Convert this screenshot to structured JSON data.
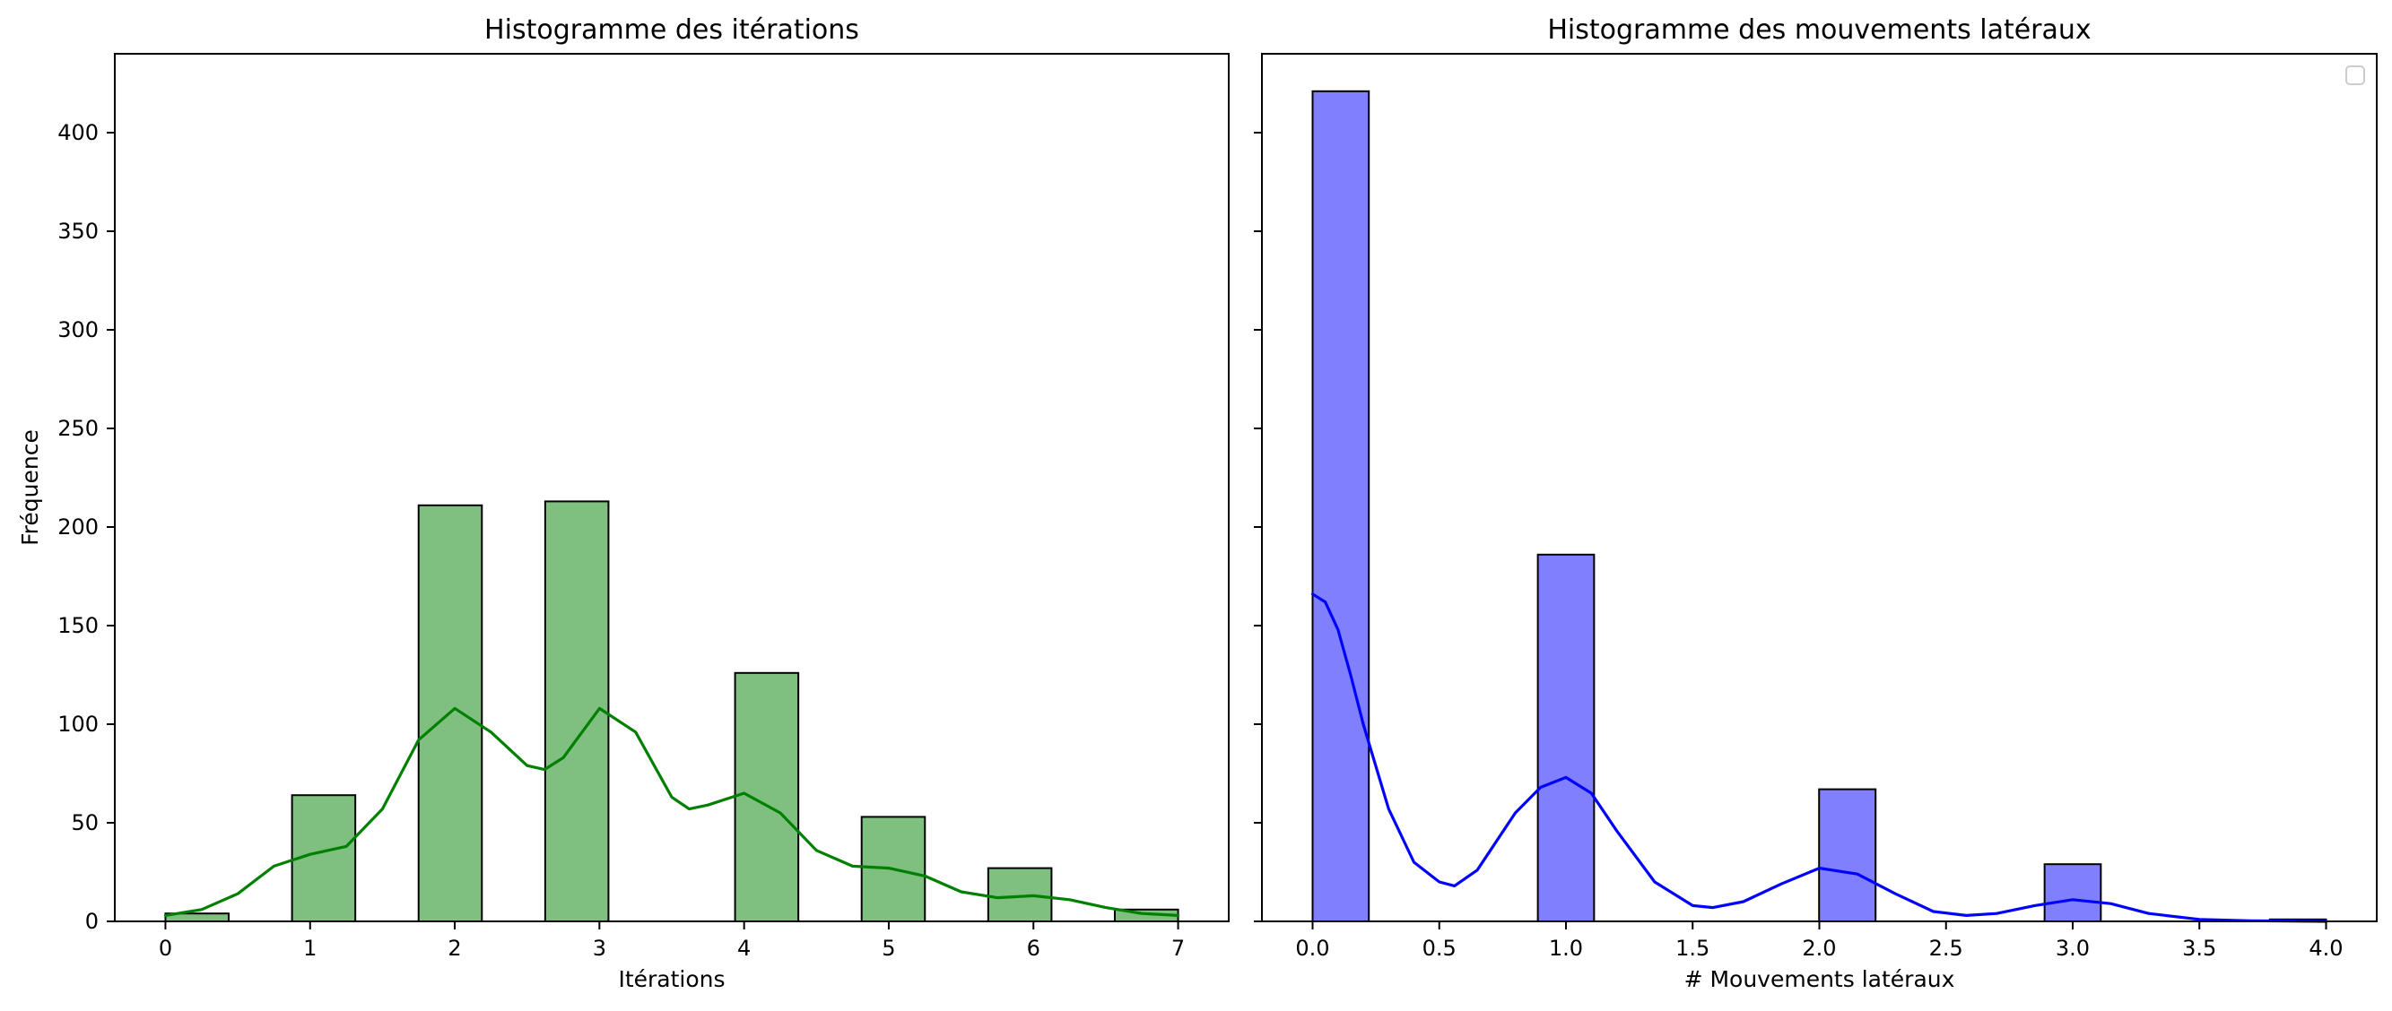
{
  "chart_data": [
    {
      "type": "bar",
      "title": "Histogramme des itérations",
      "xlabel": "Itérations",
      "ylabel": "Fréquence",
      "xlim": [
        -0.35,
        7.35
      ],
      "ylim": [
        0,
        440
      ],
      "xticks": [
        "0",
        "1",
        "2",
        "3",
        "4",
        "5",
        "6",
        "7"
      ],
      "yticks": [
        "0",
        "50",
        "100",
        "150",
        "200",
        "250",
        "300",
        "350",
        "400"
      ],
      "bins": [
        {
          "x0": 0.0,
          "x1": 0.4375,
          "count": 4
        },
        {
          "x0": 0.875,
          "x1": 1.3125,
          "count": 64
        },
        {
          "x0": 1.75,
          "x1": 2.1875,
          "count": 211
        },
        {
          "x0": 2.625,
          "x1": 3.0625,
          "count": 213
        },
        {
          "x0": 3.9375,
          "x1": 4.375,
          "count": 126
        },
        {
          "x0": 4.8125,
          "x1": 5.25,
          "count": 53
        },
        {
          "x0": 5.6875,
          "x1": 6.125,
          "count": 27
        },
        {
          "x0": 6.5625,
          "x1": 7.0,
          "count": 6
        }
      ],
      "kde": {
        "x": [
          0.0,
          0.25,
          0.5,
          0.75,
          1.0,
          1.25,
          1.5,
          1.75,
          2.0,
          2.25,
          2.5,
          2.62,
          2.75,
          3.0,
          3.25,
          3.5,
          3.62,
          3.75,
          4.0,
          4.25,
          4.5,
          4.75,
          5.0,
          5.25,
          5.5,
          5.75,
          6.0,
          6.25,
          6.5,
          6.75,
          7.0
        ],
        "y": [
          3,
          6,
          14,
          28,
          34,
          38,
          57,
          92,
          108,
          96,
          79,
          77,
          83,
          108,
          96,
          63,
          57,
          59,
          65,
          55,
          36,
          28,
          27,
          23,
          15,
          12,
          13,
          11,
          7,
          4,
          3
        ]
      },
      "bar_color": "#7fbf7f",
      "line_color": "#008000",
      "grid": false
    },
    {
      "type": "bar",
      "title": "Histogramme des mouvements latéraux",
      "xlabel": "# Mouvements latéraux",
      "ylabel": "",
      "xlim": [
        -0.2,
        4.2
      ],
      "ylim": [
        0,
        440
      ],
      "xticks": [
        "0.0",
        "0.5",
        "1.0",
        "1.5",
        "2.0",
        "2.5",
        "3.0",
        "3.5",
        "4.0"
      ],
      "bins": [
        {
          "x0": 0.0,
          "x1": 0.222,
          "count": 421
        },
        {
          "x0": 0.889,
          "x1": 1.111,
          "count": 186
        },
        {
          "x0": 1.999,
          "x1": 2.222,
          "count": 67
        },
        {
          "x0": 2.889,
          "x1": 3.111,
          "count": 29
        },
        {
          "x0": 3.778,
          "x1": 4.0,
          "count": 1
        }
      ],
      "kde": {
        "x": [
          0.0,
          0.05,
          0.1,
          0.15,
          0.2,
          0.3,
          0.4,
          0.5,
          0.56,
          0.65,
          0.8,
          0.9,
          1.0,
          1.1,
          1.2,
          1.35,
          1.5,
          1.58,
          1.7,
          1.85,
          2.0,
          2.15,
          2.3,
          2.45,
          2.58,
          2.7,
          2.85,
          3.0,
          3.15,
          3.3,
          3.5,
          3.7,
          4.0
        ],
        "y": [
          166,
          162,
          148,
          125,
          100,
          57,
          30,
          20,
          18,
          26,
          55,
          68,
          73,
          65,
          46,
          20,
          8,
          7,
          10,
          19,
          27,
          24,
          14,
          5,
          3,
          4,
          8,
          11,
          9,
          4,
          1,
          0.3,
          0
        ]
      },
      "bar_color": "#8080ff",
      "line_color": "#0000ff",
      "legend": "top-right",
      "grid": false
    }
  ]
}
